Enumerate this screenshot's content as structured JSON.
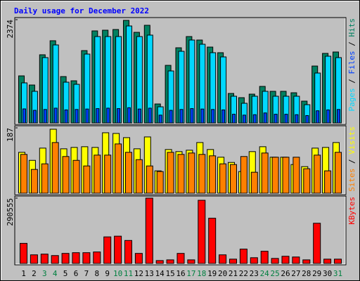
{
  "title": "Daily usage for December 2022",
  "legend_separator": "/",
  "chart_data": [
    {
      "type": "bar",
      "ylim": [
        0,
        2374
      ],
      "yticks": [
        2374
      ],
      "series": [
        {
          "name": "Pages",
          "color": "#00d8ff",
          "values": [
            921,
            727,
            1502,
            1793,
            937,
            888,
            1583,
            1986,
            1986,
            1986,
            2229,
            1986,
            2019,
            371,
            1195,
            1647,
            1906,
            1809,
            1615,
            1518,
            614,
            452,
            614,
            727,
            614,
            614,
            614,
            420,
            1147,
            1534,
            1502
          ]
        },
        {
          "name": "Files",
          "color": "#0040ff",
          "values": [
            323,
            290,
            310,
            340,
            300,
            310,
            320,
            330,
            340,
            330,
            350,
            320,
            340,
            180,
            290,
            310,
            330,
            320,
            310,
            300,
            200,
            180,
            190,
            230,
            200,
            200,
            190,
            170,
            280,
            300,
            310
          ]
        },
        {
          "name": "Hits",
          "color": "#008060",
          "values": [
            1082,
            872,
            1567,
            1890,
            1066,
            969,
            1663,
            2116,
            2132,
            2148,
            2358,
            2083,
            2245,
            436,
            1324,
            1728,
            1986,
            1906,
            1744,
            1615,
            678,
            581,
            662,
            840,
            727,
            727,
            694,
            501,
            1308,
            1599,
            1631
          ]
        }
      ]
    },
    {
      "type": "bar",
      "ylim": [
        0,
        187
      ],
      "yticks": [
        187
      ],
      "series": [
        {
          "name": "Sites",
          "color": "#ff8000",
          "values": [
            111,
            68,
            84,
            145,
            105,
            94,
            78,
            109,
            109,
            141,
            117,
            96,
            78,
            62,
            117,
            111,
            115,
            111,
            107,
            84,
            82,
            105,
            60,
            115,
            103,
            103,
            103,
            70,
            109,
            64,
            117
          ]
        },
        {
          "name": "Visits",
          "color": "#ffff00",
          "values": [
            117,
            94,
            129,
            183,
            127,
            131,
            133,
            131,
            173,
            171,
            159,
            127,
            161,
            64,
            125,
            119,
            123,
            145,
            125,
            103,
            88,
            62,
            119,
            133,
            103,
            103,
            82,
            76,
            129,
            131,
            145
          ]
        }
      ]
    },
    {
      "type": "bar",
      "ylim": [
        0,
        290555
      ],
      "yticks": [
        290555
      ],
      "categories": [
        "1",
        "2",
        "3",
        "4",
        "5",
        "6",
        "7",
        "8",
        "9",
        "10",
        "11",
        "12",
        "13",
        "14",
        "15",
        "16",
        "17",
        "18",
        "19",
        "20",
        "21",
        "22",
        "23",
        "24",
        "25",
        "26",
        "27",
        "28",
        "29",
        "30",
        "31"
      ],
      "category_colors": [
        "#000000",
        "#000000",
        "#008040",
        "#008040",
        "#000000",
        "#000000",
        "#000000",
        "#000000",
        "#000000",
        "#008040",
        "#008040",
        "#000000",
        "#000000",
        "#000000",
        "#000000",
        "#000000",
        "#008040",
        "#008040",
        "#000000",
        "#000000",
        "#000000",
        "#000000",
        "#000000",
        "#008040",
        "#008040",
        "#000000",
        "#000000",
        "#000000",
        "#000000",
        "#000000",
        "#008040"
      ],
      "series": [
        {
          "name": "KBytes",
          "color": "#ff0000",
          "values": [
            89404,
            38316,
            41509,
            35123,
            44702,
            47895,
            47895,
            51088,
            118141,
            121334,
            102176,
            44702,
            290555,
            12772,
            15965,
            44702,
            15965,
            280984,
            201159,
            38316,
            19158,
            63860,
            25544,
            54281,
            22351,
            31930,
            28737,
            15965,
            178808,
            19158,
            19158
          ]
        }
      ]
    }
  ]
}
